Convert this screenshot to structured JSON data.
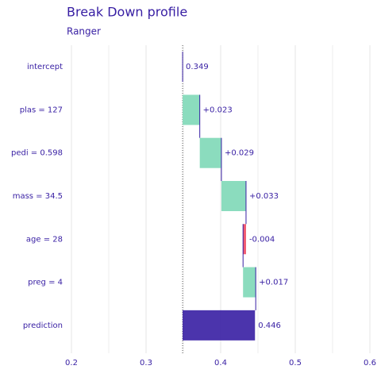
{
  "chart_data": {
    "type": "waterfall",
    "title": "Break Down profile",
    "subtitle": "Ranger",
    "categories": [
      "intercept",
      "plas = 127",
      "pedi = 0.598",
      "mass = 34.5",
      "age = 28",
      "preg = 4",
      "prediction"
    ],
    "values": [
      0.349,
      0.023,
      0.029,
      0.033,
      -0.004,
      0.017,
      0.446
    ],
    "value_labels": [
      "0.349",
      "+0.023",
      "+0.029",
      "+0.033",
      "-0.004",
      "+0.017",
      "0.446"
    ],
    "positive_color": "#8bdcbe",
    "negative_color": "#f05a71",
    "total_color": "#371ea3",
    "xlim": [
      0.2,
      0.6
    ],
    "xticks": [
      0.2,
      0.3,
      0.4,
      0.5,
      0.6
    ],
    "grid": true
  }
}
